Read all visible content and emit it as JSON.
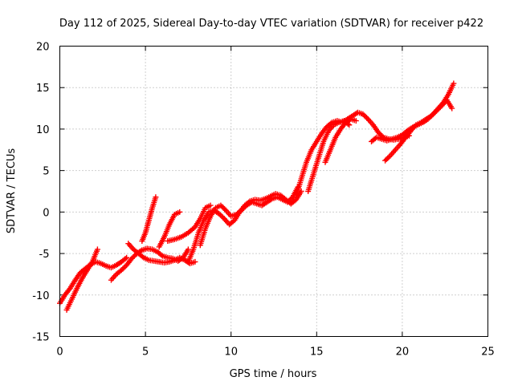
{
  "chart_data": {
    "type": "scatter",
    "title": "Day 112 of 2025, Sidereal Day-to-day VTEC variation (SDTVAR) for receiver p422",
    "xlabel": "GPS time / hours",
    "ylabel": "SDTVAR / TECUs",
    "xlim": [
      0,
      25
    ],
    "ylim": [
      -15,
      20
    ],
    "x_ticks": [
      "0",
      "5",
      "10",
      "15",
      "20",
      "25"
    ],
    "y_ticks": [
      "-15",
      "-10",
      "-5",
      "0",
      "5",
      "10",
      "15",
      "20"
    ],
    "grid": true,
    "marker": "+",
    "colors": {
      "series": "#ff0000"
    },
    "series": [
      {
        "x": [
          0.0,
          0.3,
          0.6,
          0.9,
          1.2,
          1.5,
          1.8,
          2.1,
          2.4,
          2.7,
          3.0,
          3.3,
          3.6,
          3.9
        ],
        "y": [
          -11.0,
          -10.0,
          -9.2,
          -8.2,
          -7.3,
          -6.8,
          -6.3,
          -6.0,
          -6.2,
          -6.5,
          -6.7,
          -6.4,
          -6.0,
          -5.5
        ]
      },
      {
        "x": [
          0.4,
          0.7,
          1.0,
          1.3,
          1.6,
          1.9,
          2.2
        ],
        "y": [
          -11.8,
          -10.5,
          -9.2,
          -8.0,
          -7.0,
          -6.0,
          -4.5
        ]
      },
      {
        "x": [
          3.0,
          3.3,
          3.6,
          3.9,
          4.2,
          4.5,
          4.8,
          5.1,
          5.4,
          5.7,
          6.0,
          6.3,
          6.6,
          6.9,
          7.2,
          7.5
        ],
        "y": [
          -8.2,
          -7.5,
          -7.0,
          -6.4,
          -5.6,
          -5.0,
          -4.6,
          -4.4,
          -4.5,
          -4.8,
          -5.3,
          -5.5,
          -5.6,
          -5.9,
          -5.5,
          -4.5
        ]
      },
      {
        "x": [
          4.0,
          4.3,
          4.6,
          4.9,
          5.2,
          5.5,
          5.8,
          6.1,
          6.4,
          6.7,
          7.0,
          7.3,
          7.6,
          7.9
        ],
        "y": [
          -3.8,
          -4.5,
          -5.0,
          -5.5,
          -5.8,
          -5.9,
          -6.0,
          -6.1,
          -6.0,
          -5.8,
          -5.5,
          -5.8,
          -6.2,
          -6.0
        ]
      },
      {
        "x": [
          4.8,
          5.0,
          5.2,
          5.4,
          5.6
        ],
        "y": [
          -3.5,
          -2.5,
          -1.0,
          0.5,
          1.8
        ]
      },
      {
        "x": [
          5.8,
          6.1,
          6.4,
          6.7,
          7.0
        ],
        "y": [
          -4.2,
          -3.0,
          -1.5,
          -0.3,
          0.0
        ]
      },
      {
        "x": [
          6.3,
          6.7,
          7.1,
          7.5,
          7.9,
          8.2,
          8.5,
          8.8
        ],
        "y": [
          -3.5,
          -3.3,
          -3.0,
          -2.5,
          -1.8,
          -0.8,
          0.5,
          0.8
        ]
      },
      {
        "x": [
          7.5,
          7.8,
          8.1,
          8.4,
          8.7,
          9.0,
          9.3,
          9.6,
          9.9,
          10.2,
          10.5,
          10.8,
          11.1,
          11.4,
          11.7,
          12.0,
          12.3,
          12.6,
          12.9,
          13.2,
          13.5,
          13.8,
          14.1
        ],
        "y": [
          -6.0,
          -4.5,
          -2.5,
          -1.0,
          0.0,
          0.2,
          -0.2,
          -0.8,
          -1.5,
          -1.0,
          0.0,
          0.8,
          1.3,
          1.5,
          1.4,
          1.6,
          1.9,
          2.2,
          2.0,
          1.5,
          1.0,
          1.5,
          2.5
        ]
      },
      {
        "x": [
          8.2,
          8.5,
          8.8,
          9.1,
          9.4,
          9.7,
          10.0,
          10.3,
          10.6,
          10.9,
          11.2,
          11.5,
          11.8,
          12.1,
          12.4,
          12.7,
          13.0,
          13.3,
          13.6,
          13.9
        ],
        "y": [
          -4.0,
          -2.0,
          -0.5,
          0.5,
          0.8,
          0.2,
          -0.5,
          -0.3,
          0.2,
          0.8,
          1.2,
          1.0,
          0.8,
          1.2,
          1.6,
          1.8,
          1.5,
          1.2,
          1.8,
          3.0
        ]
      },
      {
        "x": [
          13.8,
          14.1,
          14.4,
          14.7,
          15.0,
          15.3,
          15.6,
          15.9,
          16.2,
          16.5,
          16.8,
          17.1,
          17.4,
          17.7,
          18.0,
          18.3,
          18.6,
          18.9,
          19.2,
          19.5,
          19.8,
          20.1,
          20.4
        ],
        "y": [
          2.0,
          4.0,
          6.0,
          7.5,
          8.5,
          9.5,
          10.3,
          10.8,
          11.0,
          10.8,
          11.2,
          11.6,
          12.0,
          11.8,
          11.2,
          10.5,
          9.6,
          9.0,
          8.8,
          8.7,
          8.8,
          9.0,
          9.2
        ]
      },
      {
        "x": [
          14.5,
          14.8,
          15.1,
          15.4,
          15.7,
          16.0,
          16.3,
          16.6,
          16.9
        ],
        "y": [
          2.5,
          4.5,
          6.5,
          8.5,
          9.8,
          10.5,
          10.8,
          11.0,
          10.5
        ]
      },
      {
        "x": [
          15.5,
          15.8,
          16.1,
          16.4,
          16.7,
          17.0,
          17.3
        ],
        "y": [
          6.0,
          7.5,
          9.0,
          10.0,
          10.8,
          11.2,
          11.0
        ]
      },
      {
        "x": [
          18.2,
          18.5,
          18.8,
          19.1,
          19.4,
          19.7,
          20.0,
          20.3,
          20.6,
          20.9,
          21.2,
          21.5,
          21.8,
          22.1,
          22.4,
          22.7,
          23.0
        ],
        "y": [
          8.5,
          9.0,
          8.8,
          8.6,
          8.8,
          9.0,
          9.3,
          9.8,
          10.2,
          10.5,
          10.8,
          11.2,
          11.8,
          12.5,
          13.2,
          14.2,
          15.5
        ]
      },
      {
        "x": [
          19.0,
          19.3,
          19.6,
          19.9,
          20.2,
          20.5,
          20.8,
          21.1,
          21.4,
          21.7,
          22.0,
          22.3,
          22.6,
          22.9
        ],
        "y": [
          6.2,
          6.8,
          7.5,
          8.2,
          9.0,
          9.8,
          10.5,
          10.8,
          11.2,
          11.6,
          12.2,
          12.8,
          13.5,
          12.5
        ]
      }
    ]
  }
}
